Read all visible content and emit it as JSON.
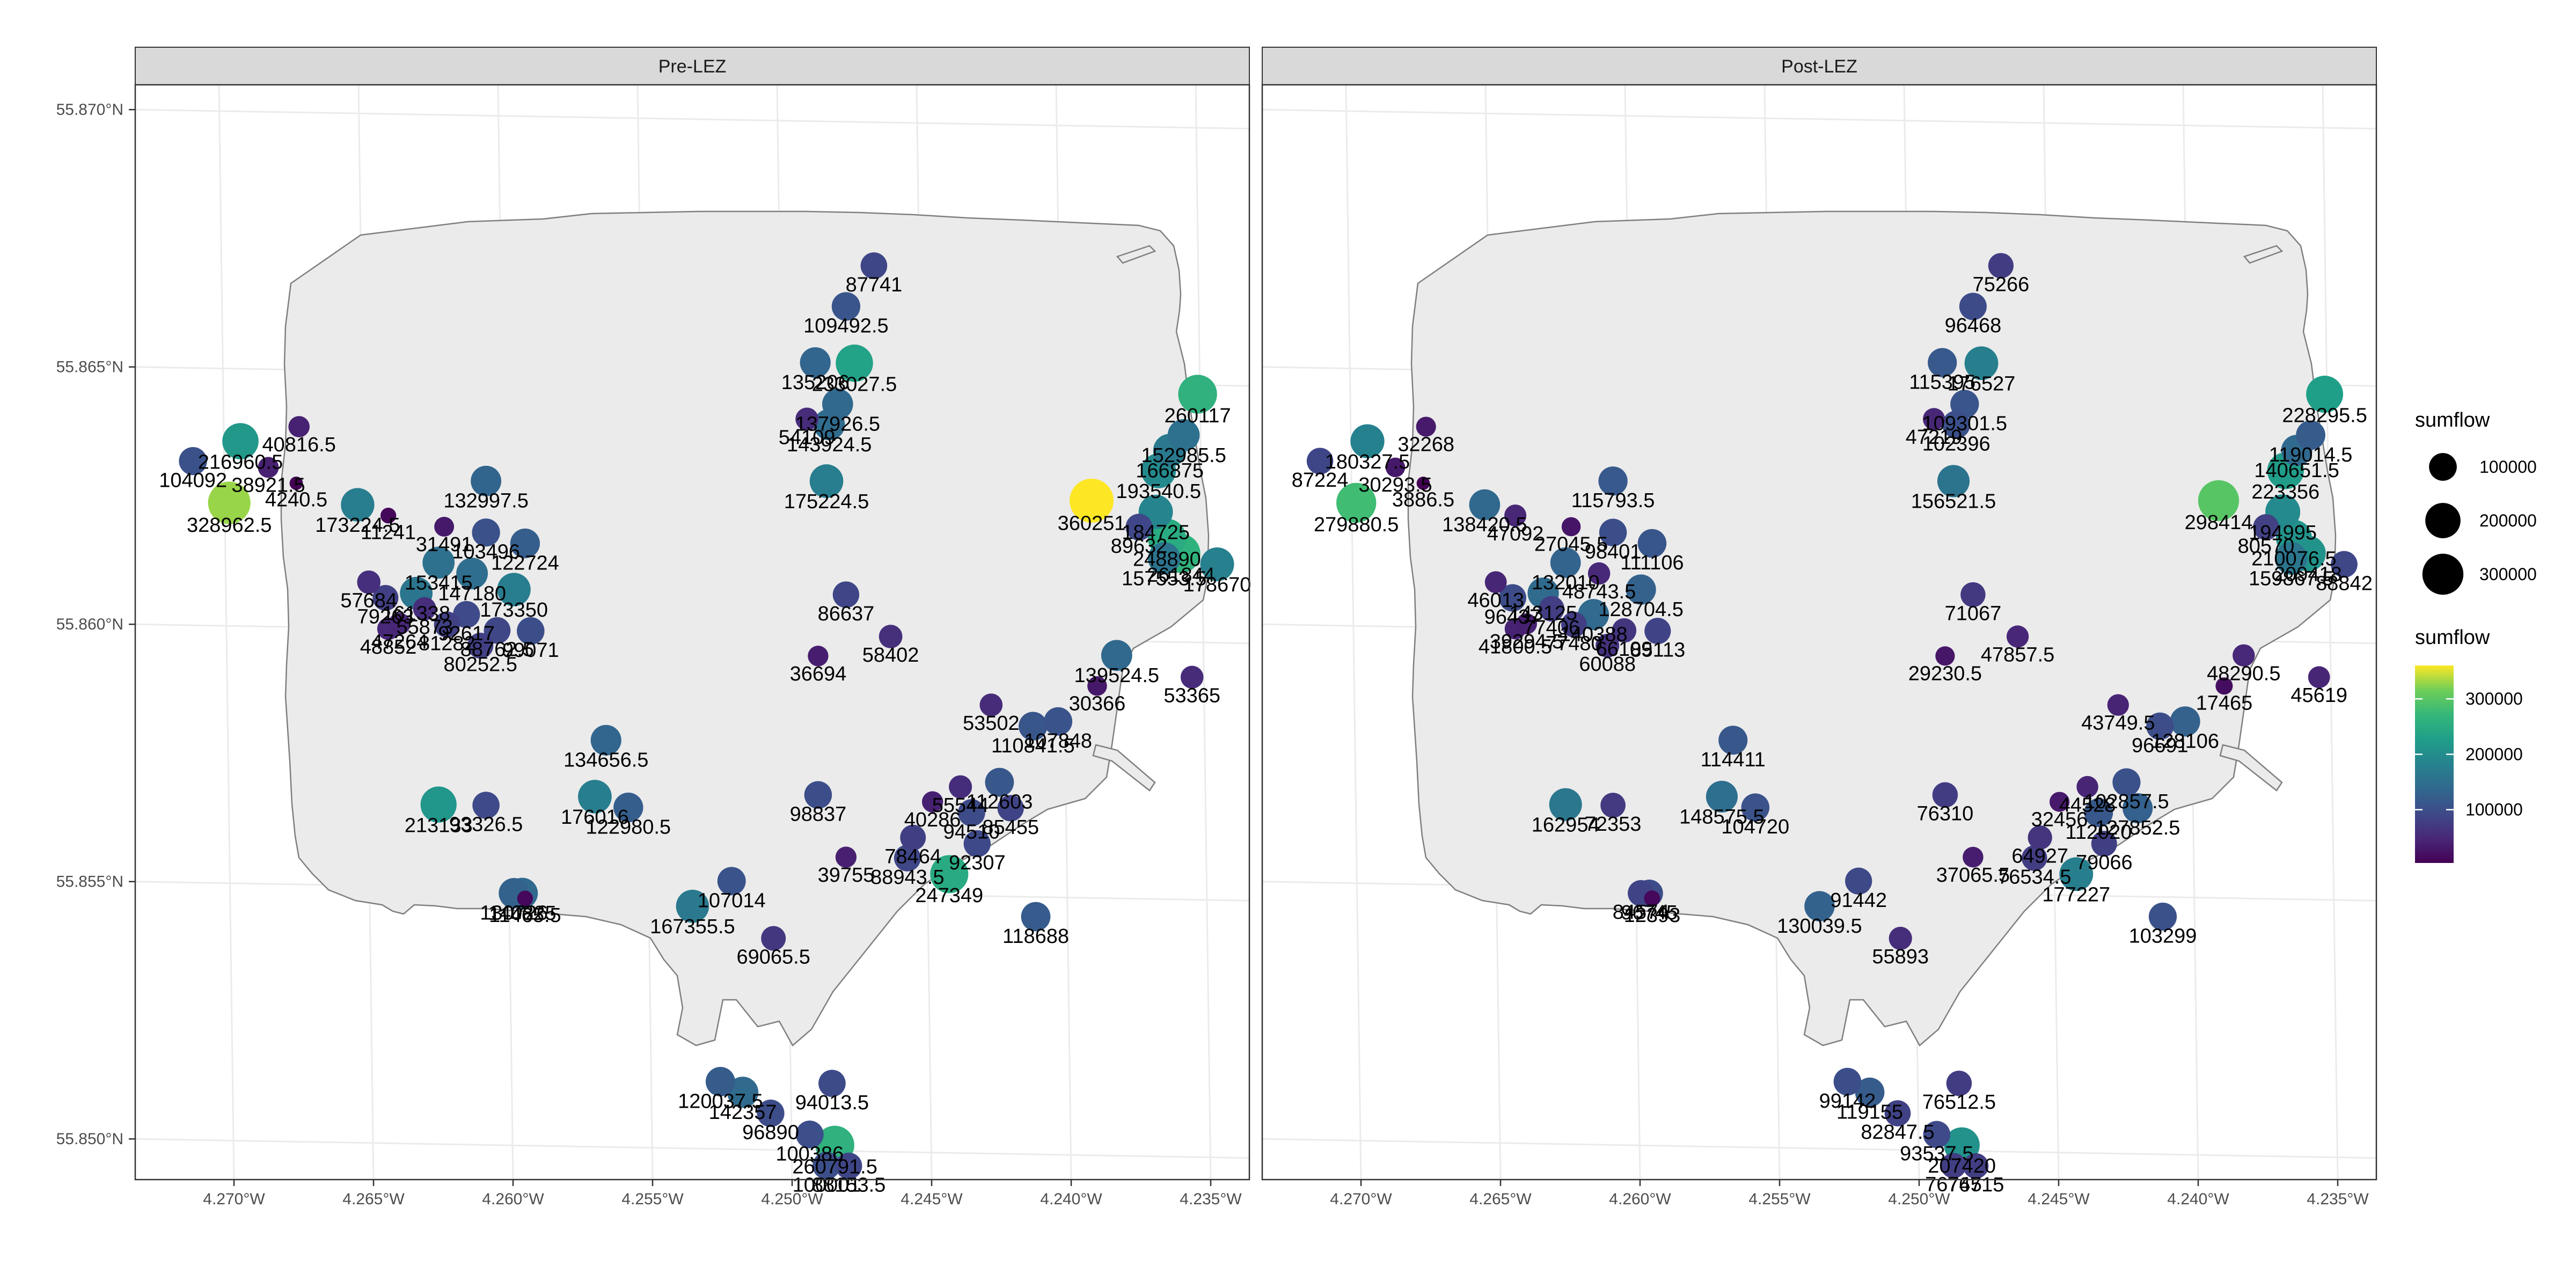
{
  "panels": [
    {
      "title": "Pre-LEZ",
      "stations": [
        {
          "lon": -4.2468,
          "lat": 55.8672,
          "value": 87741
        },
        {
          "lon": -4.2478,
          "lat": 55.8664,
          "value": 109492.5
        },
        {
          "lon": -4.2475,
          "lat": 55.8653,
          "value": 233027.5
        },
        {
          "lon": -4.2489,
          "lat": 55.8653,
          "value": 135206
        },
        {
          "lon": -4.2481,
          "lat": 55.8645,
          "value": 137926.5
        },
        {
          "lon": -4.2492,
          "lat": 55.8642,
          "value": 54109
        },
        {
          "lon": -4.2484,
          "lat": 55.8641,
          "value": 143924.5
        },
        {
          "lon": -4.2485,
          "lat": 55.863,
          "value": 175224.5
        },
        {
          "lon": -4.2478,
          "lat": 55.8608,
          "value": 86637
        },
        {
          "lon": -4.2488,
          "lat": 55.8596,
          "value": 36694
        },
        {
          "lon": -4.2462,
          "lat": 55.86,
          "value": 58402
        },
        {
          "lon": -4.2352,
          "lat": 55.8648,
          "value": 260117
        },
        {
          "lon": -4.2357,
          "lat": 55.864,
          "value": 152985.5
        },
        {
          "lon": -4.2362,
          "lat": 55.8637,
          "value": 166875
        },
        {
          "lon": -4.2366,
          "lat": 55.8633,
          "value": 193540.5
        },
        {
          "lon": -4.239,
          "lat": 55.8627,
          "value": 360251
        },
        {
          "lon": -4.2367,
          "lat": 55.8625,
          "value": 184725
        },
        {
          "lon": -4.2373,
          "lat": 55.8622,
          "value": 89632
        },
        {
          "lon": -4.2363,
          "lat": 55.862,
          "value": 248890
        },
        {
          "lon": -4.2364,
          "lat": 55.8616,
          "value": 157553.5
        },
        {
          "lon": -4.2358,
          "lat": 55.8617,
          "value": 261844
        },
        {
          "lon": -4.2345,
          "lat": 55.8615,
          "value": 178670
        },
        {
          "lon": -4.2381,
          "lat": 55.8597,
          "value": 139524.5
        },
        {
          "lon": -4.2354,
          "lat": 55.8593,
          "value": 53365
        },
        {
          "lon": -4.2388,
          "lat": 55.8591,
          "value": 30366
        },
        {
          "lon": -4.2426,
          "lat": 55.8587,
          "value": 53502
        },
        {
          "lon": -4.2402,
          "lat": 55.8584,
          "value": 107848
        },
        {
          "lon": -4.2411,
          "lat": 55.8583,
          "value": 110841.5
        },
        {
          "lon": -4.2695,
          "lat": 55.8636,
          "value": 216960.5
        },
        {
          "lon": -4.2674,
          "lat": 55.8639,
          "value": 40816.5
        },
        {
          "lon": -4.2712,
          "lat": 55.8632,
          "value": 104092
        },
        {
          "lon": -4.2699,
          "lat": 55.8624,
          "value": 328962.5
        },
        {
          "lon": -4.2685,
          "lat": 55.8631,
          "value": 38921.5
        },
        {
          "lon": -4.2675,
          "lat": 55.8628,
          "value": 4240.5
        },
        {
          "lon": -4.2653,
          "lat": 55.8624,
          "value": 173224.5
        },
        {
          "lon": -4.2642,
          "lat": 55.8622,
          "value": 11241
        },
        {
          "lon": -4.2607,
          "lat": 55.8629,
          "value": 132997.5
        },
        {
          "lon": -4.2622,
          "lat": 55.862,
          "value": 31491
        },
        {
          "lon": -4.2607,
          "lat": 55.8619,
          "value": 103496
        },
        {
          "lon": -4.2593,
          "lat": 55.8617,
          "value": 122724
        },
        {
          "lon": -4.2624,
          "lat": 55.8613,
          "value": 153415
        },
        {
          "lon": -4.2612,
          "lat": 55.8611,
          "value": 147180
        },
        {
          "lon": -4.2597,
          "lat": 55.8608,
          "value": 173350
        },
        {
          "lon": -4.2632,
          "lat": 55.8607,
          "value": 161338
        },
        {
          "lon": -4.2649,
          "lat": 55.8609,
          "value": 57684
        },
        {
          "lon": -4.2643,
          "lat": 55.8606,
          "value": 79263
        },
        {
          "lon": -4.2629,
          "lat": 55.8604,
          "value": 55873
        },
        {
          "lon": -4.2614,
          "lat": 55.8603,
          "value": 92617
        },
        {
          "lon": -4.2603,
          "lat": 55.86,
          "value": 88762.5
        },
        {
          "lon": -4.2591,
          "lat": 55.86,
          "value": 99071
        },
        {
          "lon": -4.2621,
          "lat": 55.8601,
          "value": 81282
        },
        {
          "lon": -4.2642,
          "lat": 55.86,
          "value": 48852
        },
        {
          "lon": -4.2609,
          "lat": 55.8597,
          "value": 80252.5
        },
        {
          "lon": -4.2638,
          "lat": 55.8601,
          "value": 47264
        },
        {
          "lon": -4.2564,
          "lat": 55.8579,
          "value": 134656.5
        },
        {
          "lon": -4.2568,
          "lat": 55.8568,
          "value": 176016
        },
        {
          "lon": -4.2556,
          "lat": 55.8566,
          "value": 122980.5
        },
        {
          "lon": -4.2624,
          "lat": 55.8566,
          "value": 213133
        },
        {
          "lon": -4.2607,
          "lat": 55.8566,
          "value": 93326.5
        },
        {
          "lon": -4.2597,
          "lat": 55.8549,
          "value": 130726
        },
        {
          "lon": -4.2594,
          "lat": 55.8549,
          "value": 140825
        },
        {
          "lon": -4.2593,
          "lat": 55.8548,
          "value": 11465.5
        },
        {
          "lon": -4.2488,
          "lat": 55.8569,
          "value": 98837
        },
        {
          "lon": -4.2478,
          "lat": 55.8557,
          "value": 39755
        },
        {
          "lon": -4.2519,
          "lat": 55.8552,
          "value": 107014
        },
        {
          "lon": -4.2533,
          "lat": 55.8547,
          "value": 167355.5
        },
        {
          "lon": -4.2504,
          "lat": 55.8541,
          "value": 69065.5
        },
        {
          "lon": -4.2456,
          "lat": 55.8557,
          "value": 88943.5
        },
        {
          "lon": -4.2441,
          "lat": 55.8554,
          "value": 247349
        },
        {
          "lon": -4.2454,
          "lat": 55.8561,
          "value": 78464
        },
        {
          "lon": -4.2431,
          "lat": 55.856,
          "value": 92307
        },
        {
          "lon": -4.2447,
          "lat": 55.8568,
          "value": 40286
        },
        {
          "lon": -4.2437,
          "lat": 55.8571,
          "value": 55544
        },
        {
          "lon": -4.2423,
          "lat": 55.8572,
          "value": 112603
        },
        {
          "lon": -4.2419,
          "lat": 55.8567,
          "value": 85455
        },
        {
          "lon": -4.2433,
          "lat": 55.8566,
          "value": 94510
        },
        {
          "lon": -4.241,
          "lat": 55.8546,
          "value": 118688
        },
        {
          "lon": -4.2523,
          "lat": 55.8513,
          "value": 120037.5
        },
        {
          "lon": -4.2515,
          "lat": 55.8511,
          "value": 142357
        },
        {
          "lon": -4.2483,
          "lat": 55.8513,
          "value": 94013.5
        },
        {
          "lon": -4.2505,
          "lat": 55.8507,
          "value": 96890
        },
        {
          "lon": -4.2491,
          "lat": 55.8503,
          "value": 100386
        },
        {
          "lon": -4.2482,
          "lat": 55.8501,
          "value": 260791.5
        },
        {
          "lon": -4.2485,
          "lat": 55.8497,
          "value": 100001
        },
        {
          "lon": -4.2477,
          "lat": 55.8497,
          "value": 88153.5
        }
      ]
    },
    {
      "title": "Post-LEZ",
      "stations": [
        {
          "lon": -4.2468,
          "lat": 55.8672,
          "value": 75266
        },
        {
          "lon": -4.2478,
          "lat": 55.8664,
          "value": 96468
        },
        {
          "lon": -4.2475,
          "lat": 55.8653,
          "value": 176527
        },
        {
          "lon": -4.2489,
          "lat": 55.8653,
          "value": 115395
        },
        {
          "lon": -4.2481,
          "lat": 55.8645,
          "value": 109301.5
        },
        {
          "lon": -4.2492,
          "lat": 55.8642,
          "value": 47219
        },
        {
          "lon": -4.2484,
          "lat": 55.8641,
          "value": 102396
        },
        {
          "lon": -4.2485,
          "lat": 55.863,
          "value": 156521.5
        },
        {
          "lon": -4.2478,
          "lat": 55.8608,
          "value": 71067
        },
        {
          "lon": -4.2488,
          "lat": 55.8596,
          "value": 29230.5
        },
        {
          "lon": -4.2462,
          "lat": 55.86,
          "value": 47857.5
        },
        {
          "lon": -4.2352,
          "lat": 55.8648,
          "value": 228295.5
        },
        {
          "lon": -4.2357,
          "lat": 55.864,
          "value": 119014.5
        },
        {
          "lon": -4.2362,
          "lat": 55.8637,
          "value": 140651.5
        },
        {
          "lon": -4.2366,
          "lat": 55.8633,
          "value": 223356
        },
        {
          "lon": -4.239,
          "lat": 55.8627,
          "value": 298414
        },
        {
          "lon": -4.2367,
          "lat": 55.8625,
          "value": 194995
        },
        {
          "lon": -4.2373,
          "lat": 55.8622,
          "value": 80570
        },
        {
          "lon": -4.2363,
          "lat": 55.862,
          "value": 210076.5
        },
        {
          "lon": -4.2364,
          "lat": 55.8616,
          "value": 159867.5
        },
        {
          "lon": -4.2358,
          "lat": 55.8617,
          "value": 209418
        },
        {
          "lon": -4.2345,
          "lat": 55.8615,
          "value": 88842
        },
        {
          "lon": -4.2381,
          "lat": 55.8597,
          "value": 48290.5
        },
        {
          "lon": -4.2354,
          "lat": 55.8593,
          "value": 45619
        },
        {
          "lon": -4.2388,
          "lat": 55.8591,
          "value": 17465
        },
        {
          "lon": -4.2426,
          "lat": 55.8587,
          "value": 43749.5
        },
        {
          "lon": -4.2402,
          "lat": 55.8584,
          "value": 128106
        },
        {
          "lon": -4.2411,
          "lat": 55.8583,
          "value": 96691
        },
        {
          "lon": -4.2695,
          "lat": 55.8636,
          "value": 180327.5
        },
        {
          "lon": -4.2674,
          "lat": 55.8639,
          "value": 32268
        },
        {
          "lon": -4.2712,
          "lat": 55.8632,
          "value": 87224
        },
        {
          "lon": -4.2699,
          "lat": 55.8624,
          "value": 279880.5
        },
        {
          "lon": -4.2685,
          "lat": 55.8631,
          "value": 30293.5
        },
        {
          "lon": -4.2675,
          "lat": 55.8628,
          "value": 3886.5
        },
        {
          "lon": -4.2653,
          "lat": 55.8624,
          "value": 138420.5
        },
        {
          "lon": -4.2642,
          "lat": 55.8622,
          "value": 47092
        },
        {
          "lon": -4.2607,
          "lat": 55.8629,
          "value": 115793.5
        },
        {
          "lon": -4.2622,
          "lat": 55.862,
          "value": 27045.5
        },
        {
          "lon": -4.2607,
          "lat": 55.8619,
          "value": 98401
        },
        {
          "lon": -4.2593,
          "lat": 55.8617,
          "value": 111106
        },
        {
          "lon": -4.2624,
          "lat": 55.8613,
          "value": 132010
        },
        {
          "lon": -4.2612,
          "lat": 55.8611,
          "value": 48743.5
        },
        {
          "lon": -4.2597,
          "lat": 55.8608,
          "value": 128704.5
        },
        {
          "lon": -4.2632,
          "lat": 55.8607,
          "value": 143125
        },
        {
          "lon": -4.2649,
          "lat": 55.8609,
          "value": 46013
        },
        {
          "lon": -4.2643,
          "lat": 55.8606,
          "value": 96437
        },
        {
          "lon": -4.2629,
          "lat": 55.8604,
          "value": 77406
        },
        {
          "lon": -4.2614,
          "lat": 55.8603,
          "value": 140388
        },
        {
          "lon": -4.2603,
          "lat": 55.86,
          "value": 66109
        },
        {
          "lon": -4.2591,
          "lat": 55.86,
          "value": 85113
        },
        {
          "lon": -4.2621,
          "lat": 55.8601,
          "value": 77480
        },
        {
          "lon": -4.2642,
          "lat": 55.86,
          "value": 41800.5
        },
        {
          "lon": -4.2609,
          "lat": 55.8597,
          "value": 60088
        },
        {
          "lon": -4.2638,
          "lat": 55.8601,
          "value": 39294.5
        },
        {
          "lon": -4.2564,
          "lat": 55.8579,
          "value": 114411
        },
        {
          "lon": -4.2568,
          "lat": 55.8568,
          "value": 148575.5
        },
        {
          "lon": -4.2556,
          "lat": 55.8566,
          "value": 104720
        },
        {
          "lon": -4.2624,
          "lat": 55.8566,
          "value": 162954
        },
        {
          "lon": -4.2607,
          "lat": 55.8566,
          "value": 72353
        },
        {
          "lon": -4.2597,
          "lat": 55.8549,
          "value": 84574
        },
        {
          "lon": -4.2594,
          "lat": 55.8549,
          "value": 96745
        },
        {
          "lon": -4.2593,
          "lat": 55.8548,
          "value": 12393
        },
        {
          "lon": -4.2488,
          "lat": 55.8569,
          "value": 76310
        },
        {
          "lon": -4.2478,
          "lat": 55.8557,
          "value": 37065.5
        },
        {
          "lon": -4.2519,
          "lat": 55.8552,
          "value": 91442
        },
        {
          "lon": -4.2533,
          "lat": 55.8547,
          "value": 130039.5
        },
        {
          "lon": -4.2504,
          "lat": 55.8541,
          "value": 55893
        },
        {
          "lon": -4.2456,
          "lat": 55.8557,
          "value": 76534.5
        },
        {
          "lon": -4.2441,
          "lat": 55.8554,
          "value": 177227
        },
        {
          "lon": -4.2454,
          "lat": 55.8561,
          "value": 64927
        },
        {
          "lon": -4.2431,
          "lat": 55.856,
          "value": 79066
        },
        {
          "lon": -4.2447,
          "lat": 55.8568,
          "value": 32456
        },
        {
          "lon": -4.2437,
          "lat": 55.8571,
          "value": 44528
        },
        {
          "lon": -4.2423,
          "lat": 55.8572,
          "value": 102857.5
        },
        {
          "lon": -4.2419,
          "lat": 55.8567,
          "value": 127852.5
        },
        {
          "lon": -4.2433,
          "lat": 55.8566,
          "value": 112020
        },
        {
          "lon": -4.241,
          "lat": 55.8546,
          "value": 103299
        },
        {
          "lon": -4.2523,
          "lat": 55.8513,
          "value": 99142
        },
        {
          "lon": -4.2515,
          "lat": 55.8511,
          "value": 119155
        },
        {
          "lon": -4.2483,
          "lat": 55.8513,
          "value": 76512.5
        },
        {
          "lon": -4.2505,
          "lat": 55.8507,
          "value": 82847.5
        },
        {
          "lon": -4.2491,
          "lat": 55.8503,
          "value": 93537.5
        },
        {
          "lon": -4.2482,
          "lat": 55.8501,
          "value": 207420
        },
        {
          "lon": -4.2485,
          "lat": 55.8497,
          "value": 76745
        },
        {
          "lon": -4.2477,
          "lat": 55.8497,
          "value": 76715
        }
      ]
    }
  ],
  "axes": {
    "x_ticks": [
      {
        "lon": -4.27,
        "label": "4.270°W"
      },
      {
        "lon": -4.265,
        "label": "4.265°W"
      },
      {
        "lon": -4.26,
        "label": "4.260°W"
      },
      {
        "lon": -4.255,
        "label": "4.255°W"
      },
      {
        "lon": -4.25,
        "label": "4.250°W"
      },
      {
        "lon": -4.245,
        "label": "4.245°W"
      },
      {
        "lon": -4.24,
        "label": "4.240°W"
      },
      {
        "lon": -4.235,
        "label": "4.235°W"
      }
    ],
    "y_ticks": [
      {
        "lat": 55.87,
        "label": "55.870°N"
      },
      {
        "lat": 55.865,
        "label": "55.865°N"
      },
      {
        "lat": 55.86,
        "label": "55.860°N"
      },
      {
        "lat": 55.855,
        "label": "55.855°N"
      },
      {
        "lat": 55.85,
        "label": "55.850°N"
      }
    ]
  },
  "legend": {
    "size_title": "sumflow",
    "size_breaks": [
      {
        "value": 100000,
        "label": "100000"
      },
      {
        "value": 200000,
        "label": "200000"
      },
      {
        "value": 300000,
        "label": "300000"
      }
    ],
    "color_title": "sumflow",
    "color_breaks": [
      {
        "value": 100000,
        "label": "100000"
      },
      {
        "value": 200000,
        "label": "200000"
      },
      {
        "value": 300000,
        "label": "300000"
      }
    ],
    "color_range": [
      3886.5,
      360251
    ]
  },
  "colors": {
    "boundary_fill": "#ebebeb",
    "boundary_stroke": "#7f7f7f",
    "strip_fill": "#d9d9d9",
    "grid": "#ebebeb",
    "palette": "viridis"
  }
}
